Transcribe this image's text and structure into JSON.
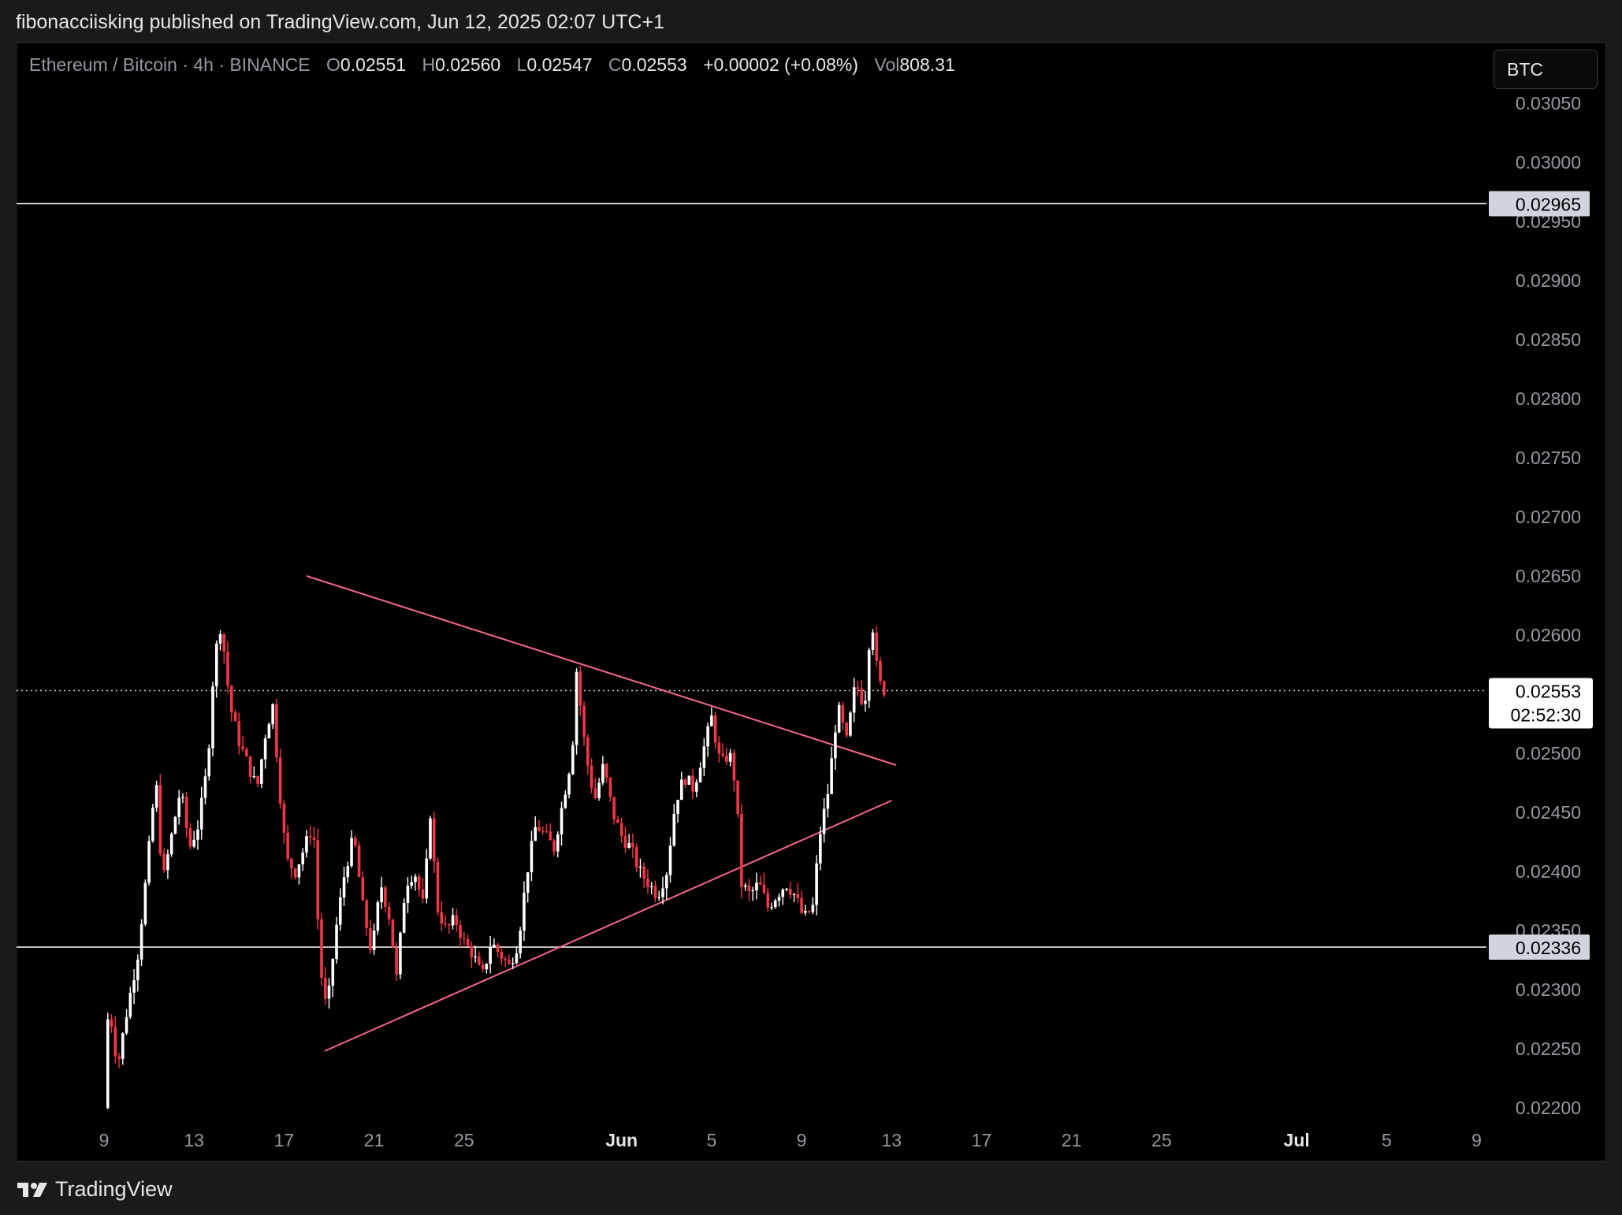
{
  "header": {
    "published_text": "fibonacciisking published on TradingView.com, Jun 12, 2025 02:07 UTC+1"
  },
  "legend": {
    "symbol": "Ethereum / Bitcoin · 4h · BINANCE",
    "open_label": "O",
    "open": "0.02551",
    "high_label": "H",
    "high": "0.02560",
    "low_label": "L",
    "low": "0.02547",
    "close_label": "C",
    "close": "0.02553",
    "change": "+0.00002 (+0.08%)",
    "vol_label": "Vol",
    "vol": "808.31"
  },
  "currency_button": "BTC",
  "price_label": {
    "price": "0.02553",
    "countdown": "02:52:30"
  },
  "footer": {
    "brand": "TradingView"
  },
  "colors": {
    "up": "#ffffff",
    "down": "#f23645",
    "trendline": "#f7668a",
    "level": "#ffffff",
    "background": "#000000"
  },
  "chart_data": {
    "type": "candlestick",
    "symbol": "ETH/BTC",
    "timeframe": "4h",
    "ylim": [
      0.0219,
      0.0306
    ],
    "y_ticks": [
      "0.03050",
      "0.03000",
      "0.02950",
      "0.02900",
      "0.02850",
      "0.02800",
      "0.02750",
      "0.02700",
      "0.02650",
      "0.02600",
      "0.02550",
      "0.02500",
      "0.02450",
      "0.02400",
      "0.02350",
      "0.02300",
      "0.02250",
      "0.02200"
    ],
    "x_ticks": [
      {
        "label": "9",
        "day": 9
      },
      {
        "label": "13",
        "day": 13
      },
      {
        "label": "17",
        "day": 17
      },
      {
        "label": "21",
        "day": 21
      },
      {
        "label": "25",
        "day": 25
      },
      {
        "label": "Jun",
        "day": 32
      },
      {
        "label": "5",
        "day": 36
      },
      {
        "label": "9",
        "day": 40
      },
      {
        "label": "13",
        "day": 44
      },
      {
        "label": "17",
        "day": 48
      },
      {
        "label": "21",
        "day": 52
      },
      {
        "label": "25",
        "day": 56
      },
      {
        "label": "Jul",
        "day": 62
      },
      {
        "label": "5",
        "day": 66
      },
      {
        "label": "9",
        "day": 70
      }
    ],
    "x_tick_bold": [
      "Jun",
      "Jul"
    ],
    "horizontal_levels": [
      {
        "price": 0.02965,
        "label": "0.02965"
      },
      {
        "price": 0.02336,
        "label": "0.02336"
      }
    ],
    "current_price": 0.02553,
    "trendlines": [
      {
        "name": "descending resistance",
        "from": {
          "day": 18.0,
          "price": 0.0265
        },
        "to": {
          "day": 44.2,
          "price": 0.0249
        }
      },
      {
        "name": "ascending support",
        "from": {
          "day": 18.8,
          "price": 0.02248
        },
        "to": {
          "day": 44.0,
          "price": 0.0246
        }
      }
    ],
    "price_path": [
      {
        "day": 9.0,
        "price": 0.022
      },
      {
        "day": 9.2,
        "price": 0.0229
      },
      {
        "day": 9.6,
        "price": 0.02235
      },
      {
        "day": 10.0,
        "price": 0.0228
      },
      {
        "day": 10.5,
        "price": 0.0233
      },
      {
        "day": 10.9,
        "price": 0.024
      },
      {
        "day": 11.3,
        "price": 0.0248
      },
      {
        "day": 11.6,
        "price": 0.0239
      },
      {
        "day": 12.0,
        "price": 0.0243
      },
      {
        "day": 12.4,
        "price": 0.0247
      },
      {
        "day": 12.8,
        "price": 0.0242
      },
      {
        "day": 13.2,
        "price": 0.0244
      },
      {
        "day": 13.6,
        "price": 0.0249
      },
      {
        "day": 13.9,
        "price": 0.0258
      },
      {
        "day": 14.2,
        "price": 0.0261
      },
      {
        "day": 14.6,
        "price": 0.0254
      },
      {
        "day": 15.0,
        "price": 0.0251
      },
      {
        "day": 15.4,
        "price": 0.0249
      },
      {
        "day": 15.8,
        "price": 0.0247
      },
      {
        "day": 16.2,
        "price": 0.0252
      },
      {
        "day": 16.5,
        "price": 0.0254
      },
      {
        "day": 16.8,
        "price": 0.0247
      },
      {
        "day": 17.1,
        "price": 0.0241
      },
      {
        "day": 17.5,
        "price": 0.024
      },
      {
        "day": 17.9,
        "price": 0.0242
      },
      {
        "day": 18.3,
        "price": 0.0244
      },
      {
        "day": 18.6,
        "price": 0.0232
      },
      {
        "day": 18.9,
        "price": 0.0228
      },
      {
        "day": 19.3,
        "price": 0.0235
      },
      {
        "day": 19.7,
        "price": 0.024
      },
      {
        "day": 20.1,
        "price": 0.0243
      },
      {
        "day": 20.5,
        "price": 0.0237
      },
      {
        "day": 20.9,
        "price": 0.0233
      },
      {
        "day": 21.3,
        "price": 0.0239
      },
      {
        "day": 21.7,
        "price": 0.0236
      },
      {
        "day": 22.0,
        "price": 0.0231
      },
      {
        "day": 22.4,
        "price": 0.0239
      },
      {
        "day": 22.8,
        "price": 0.024
      },
      {
        "day": 23.2,
        "price": 0.0237
      },
      {
        "day": 23.5,
        "price": 0.0245
      },
      {
        "day": 23.8,
        "price": 0.0237
      },
      {
        "day": 24.2,
        "price": 0.0235
      },
      {
        "day": 24.6,
        "price": 0.0236
      },
      {
        "day": 25.0,
        "price": 0.0234
      },
      {
        "day": 25.4,
        "price": 0.0233
      },
      {
        "day": 25.8,
        "price": 0.0231
      },
      {
        "day": 26.2,
        "price": 0.0234
      },
      {
        "day": 26.6,
        "price": 0.0233
      },
      {
        "day": 27.0,
        "price": 0.0232
      },
      {
        "day": 27.4,
        "price": 0.0234
      },
      {
        "day": 27.8,
        "price": 0.024
      },
      {
        "day": 28.2,
        "price": 0.0244
      },
      {
        "day": 28.6,
        "price": 0.0243
      },
      {
        "day": 29.0,
        "price": 0.0242
      },
      {
        "day": 29.4,
        "price": 0.0246
      },
      {
        "day": 29.8,
        "price": 0.025
      },
      {
        "day": 30.0,
        "price": 0.0257
      },
      {
        "day": 30.4,
        "price": 0.025
      },
      {
        "day": 30.8,
        "price": 0.0246
      },
      {
        "day": 31.2,
        "price": 0.0249
      },
      {
        "day": 31.6,
        "price": 0.0245
      },
      {
        "day": 32.0,
        "price": 0.0243
      },
      {
        "day": 32.4,
        "price": 0.0242
      },
      {
        "day": 32.8,
        "price": 0.024
      },
      {
        "day": 33.2,
        "price": 0.0239
      },
      {
        "day": 33.6,
        "price": 0.0238
      },
      {
        "day": 34.0,
        "price": 0.024
      },
      {
        "day": 34.4,
        "price": 0.0246
      },
      {
        "day": 34.8,
        "price": 0.0248
      },
      {
        "day": 35.2,
        "price": 0.0247
      },
      {
        "day": 35.6,
        "price": 0.025
      },
      {
        "day": 36.0,
        "price": 0.0253
      },
      {
        "day": 36.4,
        "price": 0.0249
      },
      {
        "day": 36.8,
        "price": 0.025
      },
      {
        "day": 37.1,
        "price": 0.0247
      },
      {
        "day": 37.3,
        "price": 0.0239
      },
      {
        "day": 37.7,
        "price": 0.0238
      },
      {
        "day": 38.1,
        "price": 0.0239
      },
      {
        "day": 38.5,
        "price": 0.0237
      },
      {
        "day": 38.9,
        "price": 0.0238
      },
      {
        "day": 39.3,
        "price": 0.0239
      },
      {
        "day": 39.7,
        "price": 0.0238
      },
      {
        "day": 40.1,
        "price": 0.0236
      },
      {
        "day": 40.5,
        "price": 0.0237
      },
      {
        "day": 40.8,
        "price": 0.0243
      },
      {
        "day": 41.2,
        "price": 0.0247
      },
      {
        "day": 41.6,
        "price": 0.0254
      },
      {
        "day": 42.0,
        "price": 0.0251
      },
      {
        "day": 42.4,
        "price": 0.0256
      },
      {
        "day": 42.8,
        "price": 0.0254
      },
      {
        "day": 43.1,
        "price": 0.0262
      },
      {
        "day": 43.4,
        "price": 0.0256
      },
      {
        "day": 43.7,
        "price": 0.02553
      }
    ]
  }
}
